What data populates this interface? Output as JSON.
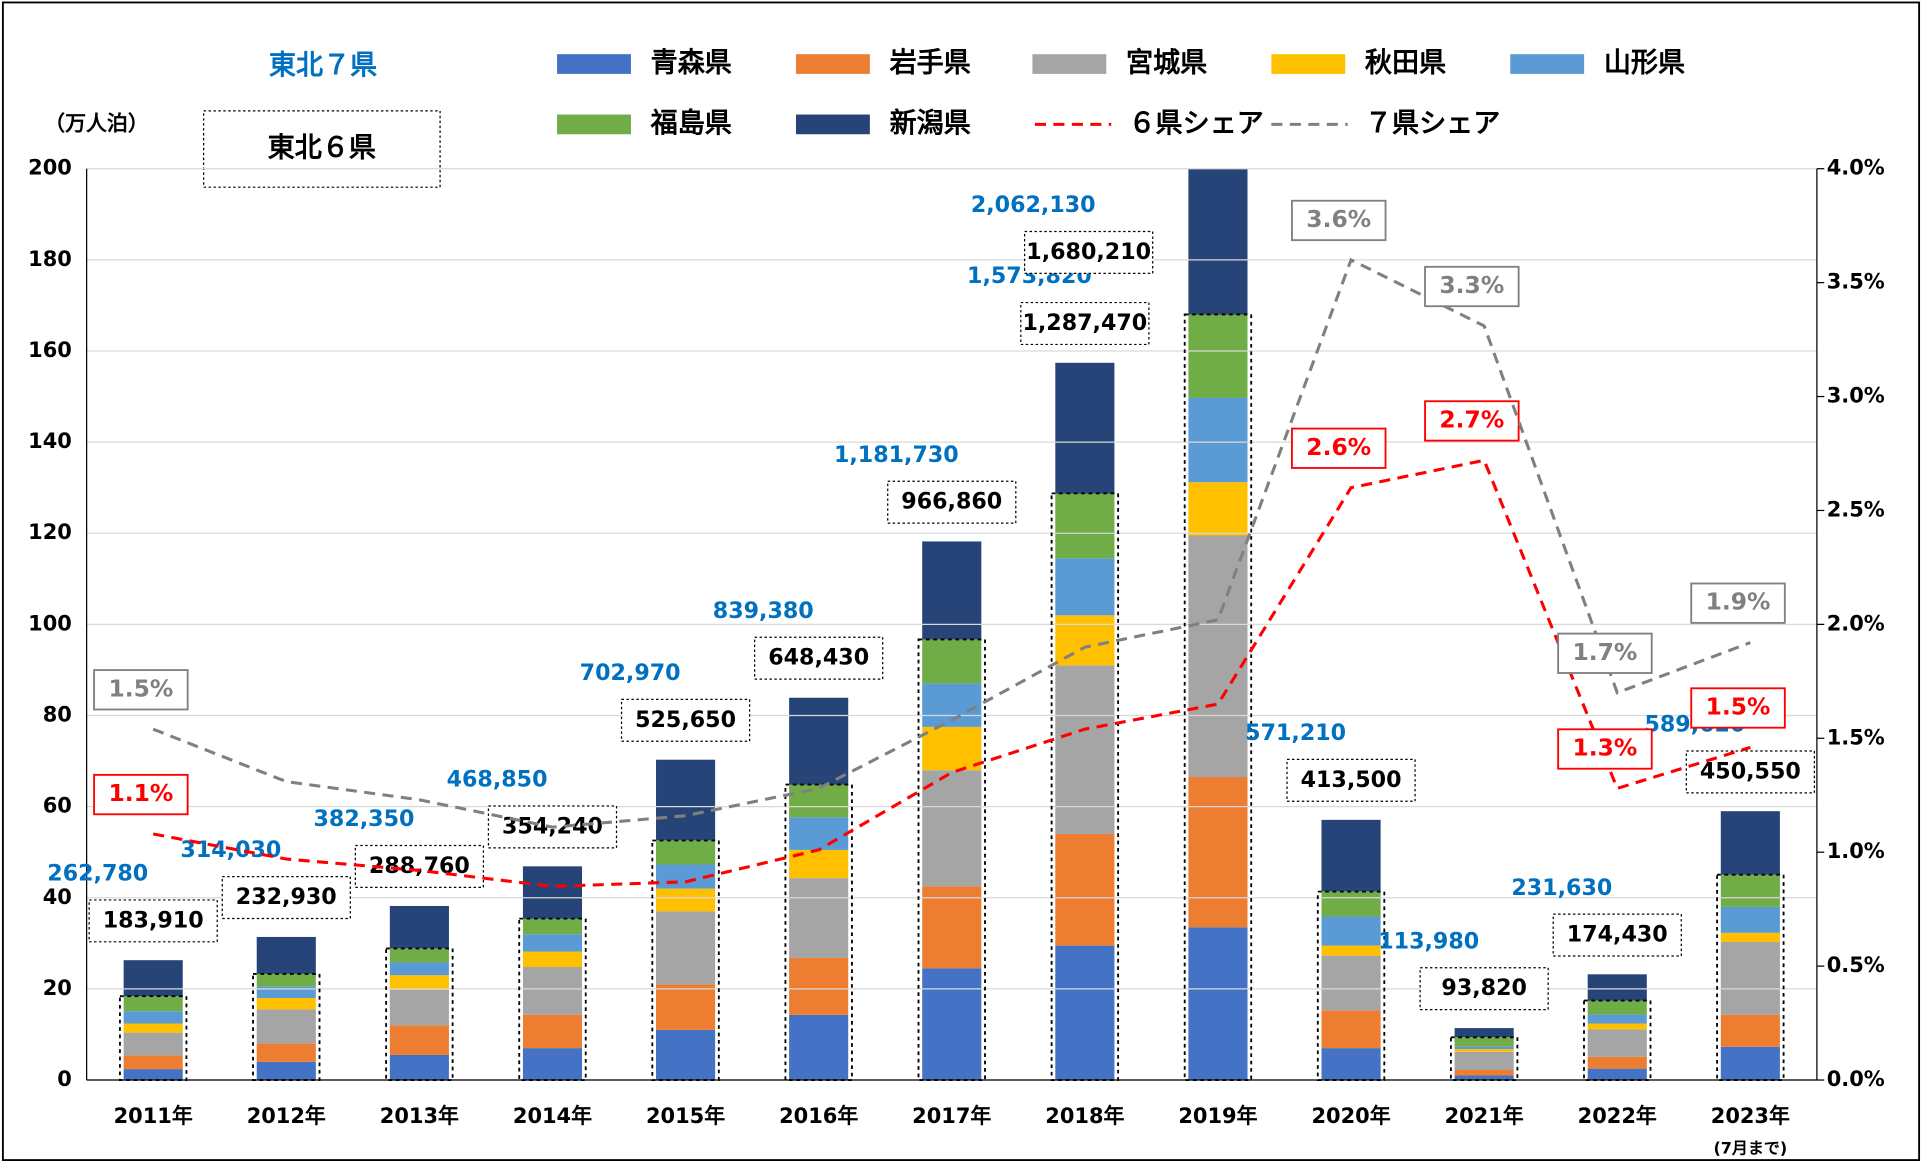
{
  "chart_data": {
    "type": "bar",
    "y_label": "（万人泊）",
    "categories": [
      "2011年",
      "2012年",
      "2013年",
      "2014年",
      "2015年",
      "2016年",
      "2017年",
      "2018年",
      "2019年",
      "2020年",
      "2021年",
      "2022年",
      "2023年"
    ],
    "category_note": "(7月まで)",
    "ylim": [
      0,
      200
    ],
    "yticks": [
      0,
      20,
      40,
      60,
      80,
      100,
      120,
      140,
      160,
      180,
      200
    ],
    "y2lim": [
      0,
      4
    ],
    "y2ticks": [
      {
        "value": 0,
        "label": "0.0%"
      },
      {
        "value": 0.5,
        "label": "0.5%"
      },
      {
        "value": 1,
        "label": "1.0%"
      },
      {
        "value": 1.5,
        "label": "1.5%"
      },
      {
        "value": 2,
        "label": "2.0%"
      },
      {
        "value": 2.5,
        "label": "2.5%"
      },
      {
        "value": 3,
        "label": "3.0%"
      },
      {
        "value": 3.5,
        "label": "3.5%"
      },
      {
        "value": 4,
        "label": "4.0%"
      }
    ],
    "grid": true,
    "series": [
      {
        "name": "青森県",
        "color": "#4472c4",
        "values": [
          2.4,
          4,
          5.5,
          7,
          11,
          14.3,
          24.5,
          29.5,
          33.5,
          7,
          1,
          2.5,
          7.3
        ]
      },
      {
        "name": "岩手県",
        "color": "#ed7d31",
        "values": [
          3,
          4,
          6.5,
          7.3,
          10,
          12.5,
          18,
          24.5,
          33,
          8.3,
          1.2,
          2.6,
          7
        ]
      },
      {
        "name": "宮城県",
        "color": "#a5a5a5",
        "values": [
          5,
          7.5,
          7.8,
          10.5,
          16,
          17.5,
          25.5,
          37,
          53,
          12,
          4,
          6,
          16
        ]
      },
      {
        "name": "秋田県",
        "color": "#ffc000",
        "values": [
          2,
          2.5,
          3.2,
          3.4,
          5,
          6.2,
          9.5,
          11,
          11.7,
          2.2,
          0.6,
          1.3,
          2
        ]
      },
      {
        "name": "山形県",
        "color": "#5b9bd5",
        "values": [
          2.7,
          2.5,
          2.8,
          3.8,
          5.3,
          7.2,
          9.5,
          12.5,
          18.5,
          6.4,
          0.6,
          2,
          5.7
        ]
      },
      {
        "name": "福島県",
        "color": "#70ad47",
        "values": [
          3.3,
          2.8,
          3.1,
          3.4,
          5.3,
          7.1,
          9.7,
          14.2,
          18.3,
          5.5,
          2,
          3,
          7.1
        ]
      },
      {
        "name": "新潟県",
        "color": "#264478",
        "values": [
          7.9,
          8.1,
          9.3,
          11.5,
          17.7,
          19.1,
          21.5,
          28.7,
          38.2,
          15.7,
          2,
          5.8,
          13.9
        ]
      },
      {
        "name": "６県シェア",
        "color": "#ff0000",
        "axis": "y2",
        "linestyle": "dashed",
        "values": [
          1.08,
          0.97,
          0.92,
          0.85,
          0.87,
          1.01,
          1.35,
          1.54,
          1.65,
          2.6,
          2.72,
          1.28,
          1.46
        ],
        "value_labels": [
          "1.1%",
          null,
          null,
          null,
          null,
          null,
          null,
          null,
          null,
          "2.6%",
          "2.7%",
          "1.3%",
          "1.5%"
        ]
      },
      {
        "name": "７県シェア",
        "color": "#808080",
        "axis": "y2",
        "linestyle": "dashed",
        "values": [
          1.54,
          1.31,
          1.23,
          1.11,
          1.16,
          1.28,
          1.58,
          1.9,
          2.02,
          3.6,
          3.31,
          1.7,
          1.92
        ],
        "value_labels": [
          "1.5%",
          null,
          null,
          null,
          null,
          null,
          null,
          null,
          null,
          "3.6%",
          "3.3%",
          "1.7%",
          "1.9%"
        ]
      }
    ],
    "totals": [
      {
        "name": "東北７県",
        "color": "#0070c0",
        "values": [
          26.278,
          31.403,
          38.235,
          46.885,
          70.297,
          83.938,
          118.173,
          157.382,
          206.213,
          57.121,
          11.398,
          23.163,
          58.962
        ],
        "value_labels": [
          "262,780",
          "314,030",
          "382,350",
          "468,850",
          "702,970",
          "839,380",
          "1,181,730",
          "1,573,820",
          "2,062,130",
          "571,210",
          "113,980",
          "231,630",
          "589,620"
        ]
      },
      {
        "name": "東北６県",
        "color": "#000000",
        "values": [
          18.391,
          23.293,
          28.876,
          35.424,
          52.565,
          64.843,
          96.686,
          128.747,
          168.021,
          41.35,
          9.382,
          17.443,
          45.055
        ],
        "value_labels": [
          "183,910",
          "232,930",
          "288,760",
          "354,240",
          "525,650",
          "648,430",
          "966,860",
          "1,287,470",
          "1,680,210",
          "413,500",
          "93,820",
          "174,430",
          "450,550"
        ]
      }
    ]
  }
}
